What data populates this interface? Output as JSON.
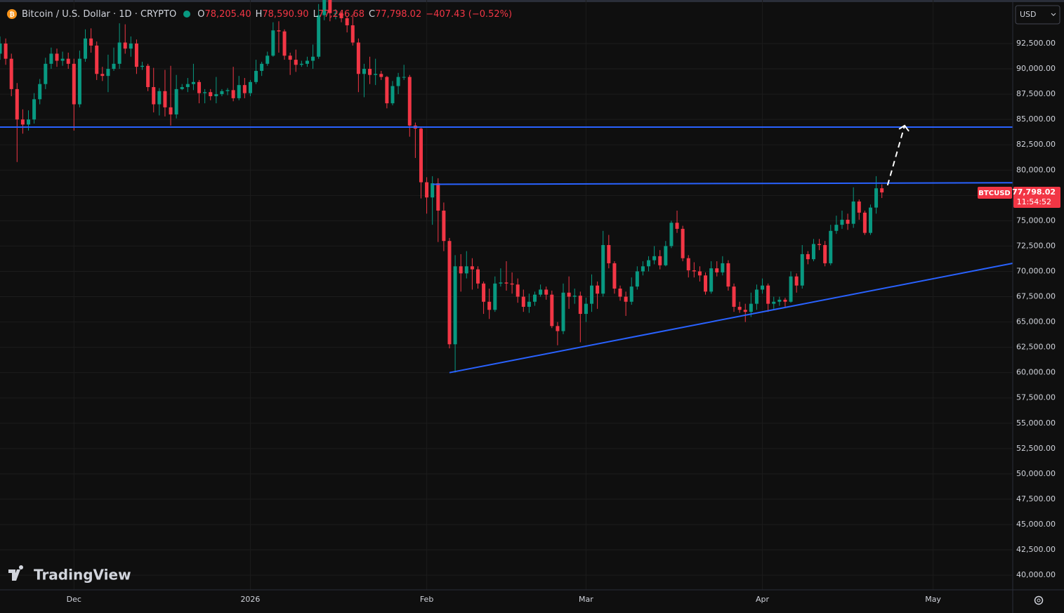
{
  "chart_data": {
    "type": "candlestick",
    "header": {
      "symbol": "Bitcoin / U.S. Dollar · 1D · CRYPTO",
      "ohlc_keys": [
        "O",
        "H",
        "L",
        "C"
      ],
      "ohlc_values": [
        "78,205.40",
        "78,590.90",
        "77,246.68",
        "77,798.02"
      ],
      "change": "−407.43 (−0.52%)"
    },
    "currency": "USD",
    "watermark": "TradingView",
    "price_tag": {
      "symbol": "BTCUSD",
      "price": "77,798.02",
      "countdown": "11:54:52",
      "color": "#f23645"
    },
    "up_color": "#089981",
    "down_color": "#f23645",
    "grid": true,
    "xlim": [
      "2025-11-18",
      "2026-05-15"
    ],
    "xticks": [
      {
        "value": "2025-12-01",
        "label": "Dec"
      },
      {
        "value": "2026-01-01",
        "label": "2026"
      },
      {
        "value": "2026-02-01",
        "label": "Feb"
      },
      {
        "value": "2026-03-01",
        "label": "Mar"
      },
      {
        "value": "2026-04-01",
        "label": "Apr"
      },
      {
        "value": "2026-05-01",
        "label": "May"
      }
    ],
    "ylim": [
      38550,
      96800
    ],
    "yticks": [
      {
        "value": 40000,
        "label": "40,000.00"
      },
      {
        "value": 42500,
        "label": "42,500.00"
      },
      {
        "value": 45000,
        "label": "45,000.00"
      },
      {
        "value": 47500,
        "label": "47,500.00"
      },
      {
        "value": 50000,
        "label": "50,000.00"
      },
      {
        "value": 52500,
        "label": "52,500.00"
      },
      {
        "value": 55000,
        "label": "55,000.00"
      },
      {
        "value": 57500,
        "label": "57,500.00"
      },
      {
        "value": 60000,
        "label": "60,000.00"
      },
      {
        "value": 62500,
        "label": "62,500.00"
      },
      {
        "value": 65000,
        "label": "65,000.00"
      },
      {
        "value": 67500,
        "label": "67,500.00"
      },
      {
        "value": 70000,
        "label": "70,000.00"
      },
      {
        "value": 72500,
        "label": "72,500.00"
      },
      {
        "value": 75000,
        "label": "75,000.00"
      },
      {
        "value": 77500,
        "label": "77,500.00"
      },
      {
        "value": 80000,
        "label": "80,000.00"
      },
      {
        "value": 82500,
        "label": "82,500.00"
      },
      {
        "value": 85000,
        "label": "85,000.00"
      },
      {
        "value": 87500,
        "label": "87,500.00"
      },
      {
        "value": 90000,
        "label": "90,000.00"
      },
      {
        "value": 92500,
        "label": "92,500.00"
      }
    ],
    "x": [
      "2025-11-18",
      "2025-11-19",
      "2025-11-20",
      "2025-11-21",
      "2025-11-22",
      "2025-11-23",
      "2025-11-24",
      "2025-11-25",
      "2025-11-26",
      "2025-11-27",
      "2025-11-28",
      "2025-11-29",
      "2025-11-30",
      "2025-12-01",
      "2025-12-02",
      "2025-12-03",
      "2025-12-04",
      "2025-12-05",
      "2025-12-06",
      "2025-12-07",
      "2025-12-08",
      "2025-12-09",
      "2025-12-10",
      "2025-12-11",
      "2025-12-12",
      "2025-12-13",
      "2025-12-14",
      "2025-12-15",
      "2025-12-16",
      "2025-12-17",
      "2025-12-18",
      "2025-12-19",
      "2025-12-20",
      "2025-12-21",
      "2025-12-22",
      "2025-12-23",
      "2025-12-24",
      "2025-12-25",
      "2025-12-26",
      "2025-12-27",
      "2025-12-28",
      "2025-12-29",
      "2025-12-30",
      "2025-12-31",
      "2026-01-01",
      "2026-01-02",
      "2026-01-03",
      "2026-01-04",
      "2026-01-05",
      "2026-01-06",
      "2026-01-07",
      "2026-01-08",
      "2026-01-09",
      "2026-01-10",
      "2026-01-11",
      "2026-01-12",
      "2026-01-13",
      "2026-01-14",
      "2026-01-15",
      "2026-01-16",
      "2026-01-17",
      "2026-01-18",
      "2026-01-19",
      "2026-01-20",
      "2026-01-21",
      "2026-01-22",
      "2026-01-23",
      "2026-01-24",
      "2026-01-25",
      "2026-01-26",
      "2026-01-27",
      "2026-01-28",
      "2026-01-29",
      "2026-01-30",
      "2026-01-31",
      "2026-02-01",
      "2026-02-02",
      "2026-02-03",
      "2026-02-04",
      "2026-02-05",
      "2026-02-06",
      "2026-02-07",
      "2026-02-08",
      "2026-02-09",
      "2026-02-10",
      "2026-02-11",
      "2026-02-12",
      "2026-02-13",
      "2026-02-14",
      "2026-02-15",
      "2026-02-16",
      "2026-02-17",
      "2026-02-18",
      "2026-02-19",
      "2026-02-20",
      "2026-02-21",
      "2026-02-22",
      "2026-02-23",
      "2026-02-24",
      "2026-02-25",
      "2026-02-26",
      "2026-02-27",
      "2026-02-28",
      "2026-03-01",
      "2026-03-02",
      "2026-03-03",
      "2026-03-04",
      "2026-03-05",
      "2026-03-06",
      "2026-03-07",
      "2026-03-08",
      "2026-03-09",
      "2026-03-10",
      "2026-03-11",
      "2026-03-12",
      "2026-03-13",
      "2026-03-14",
      "2026-03-15",
      "2026-03-16",
      "2026-03-17",
      "2026-03-18",
      "2026-03-19",
      "2026-03-20",
      "2026-03-21",
      "2026-03-22",
      "2026-03-23",
      "2026-03-24",
      "2026-03-25",
      "2026-03-26",
      "2026-03-27",
      "2026-03-28",
      "2026-03-29",
      "2026-03-30",
      "2026-03-31",
      "2026-04-01",
      "2026-04-02",
      "2026-04-03",
      "2026-04-04",
      "2026-04-05",
      "2026-04-06",
      "2026-04-07",
      "2026-04-08",
      "2026-04-09",
      "2026-04-10",
      "2026-04-11",
      "2026-04-12",
      "2026-04-13",
      "2026-04-14",
      "2026-04-15",
      "2026-04-16",
      "2026-04-17",
      "2026-04-18",
      "2026-04-19",
      "2026-04-20",
      "2026-04-21",
      "2026-04-22"
    ],
    "open": [
      91500,
      92500,
      91000,
      88000,
      85000,
      84500,
      85000,
      87000,
      88500,
      90500,
      91500,
      90800,
      91000,
      90500,
      86500,
      91000,
      93000,
      92300,
      89500,
      89300,
      90000,
      90500,
      92600,
      92000,
      92500,
      90200,
      90300,
      88200,
      86500,
      87800,
      86200,
      85500,
      88000,
      88200,
      88500,
      88700,
      87600,
      87700,
      87300,
      87500,
      87800,
      87900,
      87100,
      88400,
      87600,
      88700,
      89800,
      90500,
      91300,
      93800,
      93700,
      91300,
      90900,
      90400,
      90500,
      90800,
      91200,
      95300,
      96800,
      95500,
      95500,
      95000,
      94300,
      92600,
      89500,
      90000,
      89400,
      89500,
      89200,
      86600,
      88300,
      89200,
      89200,
      84400,
      84100,
      78800,
      77300,
      78700,
      76000,
      73000,
      62800,
      70500,
      69800,
      70500,
      70200,
      68800,
      67000,
      66200,
      68800,
      68900,
      68800,
      68700,
      67500,
      66500,
      67000,
      67700,
      68200,
      67700,
      64600,
      64100,
      67900,
      67500,
      67600,
      65800,
      66800,
      68600,
      67800,
      72600,
      70800,
      68300,
      67500,
      67000,
      68500,
      70000,
      70500,
      71100,
      71500,
      70600,
      72500,
      74800,
      74200,
      71300,
      70100,
      70000,
      69600,
      68000,
      70300,
      69900,
      70800,
      68500,
      66500,
      66200,
      66000,
      66800,
      68200,
      68600,
      66800,
      67000,
      67200,
      67000,
      69500,
      68600,
      71700,
      71200,
      72700,
      72600,
      70800,
      74000,
      74600,
      75100,
      74700,
      76900,
      75800,
      73800,
      76300,
      78205.4
    ],
    "high": [
      93200,
      93000,
      91500,
      88600,
      86000,
      85900,
      87600,
      89000,
      91100,
      92100,
      92000,
      91700,
      91600,
      91000,
      91800,
      93900,
      94000,
      92700,
      90200,
      91400,
      92100,
      94500,
      94400,
      93200,
      92900,
      90700,
      90500,
      90100,
      88100,
      89900,
      90300,
      89400,
      88500,
      89100,
      90500,
      88900,
      88000,
      88000,
      89200,
      88000,
      88100,
      90200,
      89300,
      89100,
      88900,
      90900,
      90700,
      91700,
      94600,
      94700,
      93900,
      91600,
      91900,
      90800,
      91200,
      92400,
      96400,
      97900,
      97200,
      95900,
      95600,
      95200,
      95400,
      93000,
      90500,
      91200,
      91000,
      89800,
      89300,
      88800,
      89600,
      90400,
      89400,
      84700,
      84200,
      79300,
      79400,
      79200,
      76800,
      73300,
      71600,
      71700,
      72000,
      71300,
      70500,
      69000,
      68300,
      69500,
      70300,
      71000,
      69900,
      69300,
      68200,
      67800,
      68000,
      68700,
      68500,
      68100,
      65000,
      68800,
      69500,
      68300,
      68000,
      67400,
      69700,
      69000,
      74000,
      73600,
      71000,
      68600,
      68000,
      69400,
      70500,
      71000,
      71500,
      72500,
      72100,
      73000,
      75000,
      76000,
      74500,
      71600,
      70900,
      70500,
      69900,
      71000,
      71000,
      71500,
      71100,
      68800,
      67000,
      66800,
      67900,
      68700,
      69300,
      68800,
      67500,
      67500,
      67400,
      70000,
      69800,
      72600,
      72000,
      73200,
      73200,
      73000,
      74600,
      75500,
      76000,
      75700,
      78300,
      77100,
      76000,
      76600,
      79400,
      78590.9
    ],
    "low": [
      90900,
      90400,
      87300,
      80800,
      83600,
      83900,
      84600,
      86500,
      88000,
      90000,
      90200,
      90300,
      90000,
      83900,
      86200,
      90700,
      91600,
      88900,
      88800,
      87700,
      89800,
      90000,
      91500,
      91200,
      89500,
      89900,
      87800,
      85700,
      85400,
      85300,
      84400,
      85100,
      87900,
      87700,
      87900,
      86600,
      86600,
      86900,
      86600,
      87300,
      87400,
      86800,
      86900,
      87100,
      87300,
      88500,
      89300,
      90300,
      91200,
      91600,
      90900,
      89400,
      89700,
      90200,
      90200,
      90000,
      91000,
      94800,
      94700,
      94900,
      94600,
      93600,
      92300,
      87700,
      87200,
      88500,
      88400,
      88900,
      86100,
      86400,
      87500,
      88900,
      83300,
      81200,
      77200,
      75700,
      74600,
      72900,
      72000,
      62400,
      60000,
      68000,
      69300,
      68200,
      68300,
      65800,
      65300,
      66000,
      68500,
      68100,
      67800,
      66900,
      66000,
      65900,
      66600,
      67500,
      67200,
      64400,
      62700,
      63800,
      66300,
      66800,
      63000,
      65000,
      66000,
      66300,
      67500,
      70300,
      67800,
      67100,
      65600,
      66700,
      68200,
      69600,
      70000,
      70700,
      70200,
      70500,
      72300,
      73800,
      71000,
      69400,
      69400,
      69000,
      67700,
      67800,
      69500,
      69600,
      68100,
      66000,
      65900,
      65000,
      65500,
      66200,
      67800,
      66000,
      66300,
      66600,
      66500,
      66900,
      67900,
      68300,
      70700,
      71000,
      72100,
      70500,
      70600,
      73700,
      74200,
      74100,
      74300,
      75100,
      73600,
      73600,
      75700,
      77246.68
    ],
    "close": [
      92500,
      91000,
      88000,
      85000,
      84500,
      85000,
      87000,
      88500,
      90500,
      91500,
      90800,
      91000,
      90500,
      86500,
      91000,
      93000,
      92300,
      89500,
      89300,
      90000,
      90500,
      92600,
      92000,
      92500,
      90200,
      90300,
      88200,
      86500,
      87800,
      86200,
      85500,
      88000,
      88200,
      88500,
      88700,
      87600,
      87700,
      87300,
      87500,
      87800,
      87900,
      87100,
      88400,
      87600,
      88700,
      89800,
      90500,
      91300,
      93800,
      93700,
      91300,
      90900,
      90400,
      90500,
      90800,
      91200,
      95300,
      96800,
      95500,
      95500,
      95000,
      94300,
      92600,
      89500,
      90000,
      89400,
      89500,
      89200,
      86600,
      88300,
      89200,
      89200,
      84400,
      84100,
      78800,
      77300,
      78700,
      76000,
      73000,
      62800,
      70500,
      69800,
      70500,
      70200,
      68800,
      67000,
      66200,
      68800,
      68900,
      68800,
      68700,
      67500,
      66500,
      67000,
      67700,
      68200,
      67700,
      64600,
      64100,
      67900,
      67500,
      67600,
      65800,
      66800,
      68600,
      67800,
      72600,
      70800,
      68300,
      67500,
      67000,
      68500,
      70000,
      70500,
      71100,
      71500,
      70600,
      72500,
      74800,
      74200,
      71300,
      70100,
      70000,
      69600,
      68000,
      70300,
      69900,
      70800,
      68500,
      66500,
      66200,
      66000,
      66800,
      68200,
      68600,
      66800,
      67000,
      67200,
      67000,
      69500,
      68600,
      71700,
      71200,
      72700,
      72600,
      70800,
      74000,
      74600,
      75100,
      74700,
      76900,
      75800,
      73800,
      76300,
      78205.4,
      77798.02
    ],
    "drawings": [
      {
        "color": "#2962ff",
        "dashed": false,
        "x": [
          "2025-11-18",
          "2026-05-15"
        ],
        "y": [
          84250,
          84250
        ]
      },
      {
        "color": "#2962ff",
        "dashed": false,
        "x": [
          "2026-02-02",
          "2026-05-15"
        ],
        "y": [
          78600,
          78750
        ]
      },
      {
        "color": "#2962ff",
        "dashed": false,
        "x": [
          "2026-02-05",
          "2026-05-15"
        ],
        "y": [
          60000,
          70800
        ]
      },
      {
        "color": "#ffffff",
        "dashed": true,
        "x": [
          "2026-04-23",
          "2026-04-26"
        ],
        "y": [
          78500,
          84400
        ]
      }
    ]
  }
}
